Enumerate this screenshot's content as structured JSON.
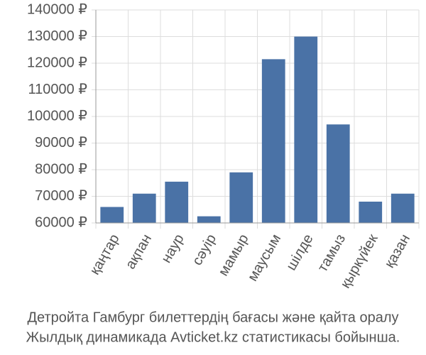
{
  "chart_data": {
    "type": "bar",
    "categories": [
      "қаңтар",
      "ақпан",
      "наур",
      "сәуір",
      "мамыр",
      "маусым",
      "шілде",
      "тамыз",
      "қыркүйек",
      "қазан"
    ],
    "values": [
      66000,
      71000,
      75500,
      62500,
      79000,
      121500,
      130000,
      97000,
      68000,
      71000
    ],
    "color": "#4a72a6",
    "ylim": [
      60000,
      140000
    ],
    "yticks": [
      {
        "value": 60000,
        "label": "60000 ₽"
      },
      {
        "value": 70000,
        "label": "70000 ₽"
      },
      {
        "value": 80000,
        "label": "80000 ₽"
      },
      {
        "value": 90000,
        "label": "90000 ₽"
      },
      {
        "value": 100000,
        "label": "100000 ₽"
      },
      {
        "value": 110000,
        "label": "110000 ₽"
      },
      {
        "value": 120000,
        "label": "120000 ₽"
      },
      {
        "value": 130000,
        "label": "130000 ₽"
      },
      {
        "value": 140000,
        "label": "140000 ₽"
      }
    ],
    "grid": true,
    "caption": [
      "Детройта Гамбург билеттердің бағасы және қайта оралу",
      "Жылдық динамикада Avticket.kz статистикасы бойынша."
    ]
  }
}
